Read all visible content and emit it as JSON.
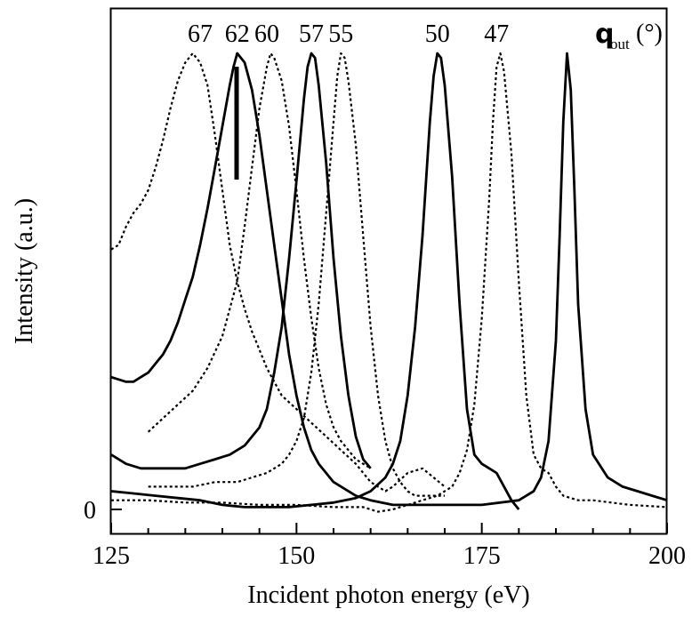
{
  "chart_data": {
    "type": "line",
    "xlabel": "Incident photon energy (eV)",
    "ylabel": "Intensity (a.u.)",
    "xlim": [
      125,
      200
    ],
    "ylim": [
      -0.05,
      1.05
    ],
    "x_ticks": [
      "125",
      "150",
      "175",
      "200"
    ],
    "y_ticks": [
      "0"
    ],
    "grid": false,
    "legend_header": {
      "symbol": "q",
      "subscript": "out",
      "unit": "(°)"
    },
    "series": [
      {
        "name": "67",
        "style": "dashed",
        "peak_label_x": 137,
        "points": [
          [
            125,
            0.57
          ],
          [
            126,
            0.58
          ],
          [
            127,
            0.62
          ],
          [
            128,
            0.65
          ],
          [
            129,
            0.67
          ],
          [
            130,
            0.7
          ],
          [
            131,
            0.75
          ],
          [
            132,
            0.81
          ],
          [
            133,
            0.88
          ],
          [
            134,
            0.94
          ],
          [
            135,
            0.98
          ],
          [
            136,
            1.0
          ],
          [
            137,
            0.98
          ],
          [
            138,
            0.93
          ],
          [
            139,
            0.82
          ],
          [
            140,
            0.7
          ],
          [
            141,
            0.58
          ],
          [
            142,
            0.5
          ],
          [
            143,
            0.44
          ],
          [
            144,
            0.39
          ],
          [
            145,
            0.35
          ],
          [
            146,
            0.31
          ],
          [
            147,
            0.28
          ],
          [
            148,
            0.25
          ],
          [
            150,
            0.22
          ],
          [
            152,
            0.19
          ],
          [
            154,
            0.16
          ],
          [
            156,
            0.13
          ],
          [
            158,
            0.1
          ],
          [
            160,
            0.06
          ],
          [
            161,
            0.05
          ],
          [
            162,
            0.04
          ],
          [
            163,
            0.05
          ],
          [
            165,
            0.08
          ],
          [
            167,
            0.09
          ],
          [
            170,
            0.05
          ]
        ]
      },
      {
        "name": "62",
        "style": "solid",
        "peak_label_x": 142,
        "points": [
          [
            125,
            0.29
          ],
          [
            127,
            0.28
          ],
          [
            128,
            0.28
          ],
          [
            129,
            0.29
          ],
          [
            130,
            0.3
          ],
          [
            131,
            0.32
          ],
          [
            132,
            0.34
          ],
          [
            133,
            0.37
          ],
          [
            134,
            0.41
          ],
          [
            135,
            0.46
          ],
          [
            136,
            0.51
          ],
          [
            137,
            0.58
          ],
          [
            138,
            0.66
          ],
          [
            139,
            0.75
          ],
          [
            140,
            0.84
          ],
          [
            141,
            0.93
          ],
          [
            141.5,
            0.97
          ],
          [
            142,
            1.0
          ],
          [
            143,
            0.98
          ],
          [
            144,
            0.92
          ],
          [
            145,
            0.82
          ],
          [
            146,
            0.7
          ],
          [
            147,
            0.58
          ],
          [
            148,
            0.46
          ],
          [
            149,
            0.34
          ],
          [
            150,
            0.25
          ],
          [
            151,
            0.18
          ],
          [
            152,
            0.13
          ],
          [
            153,
            0.1
          ],
          [
            155,
            0.06
          ],
          [
            158,
            0.03
          ],
          [
            160,
            0.02
          ],
          [
            163,
            0.01
          ],
          [
            166,
            0.01
          ],
          [
            170,
            0.01
          ],
          [
            175,
            0.01
          ],
          [
            180,
            0.02
          ],
          [
            181,
            0.03
          ],
          [
            182,
            0.04
          ],
          [
            183,
            0.07
          ],
          [
            184,
            0.15
          ],
          [
            185,
            0.37
          ],
          [
            185.5,
            0.6
          ],
          [
            186,
            0.85
          ],
          [
            186.5,
            1.0
          ],
          [
            187,
            0.92
          ],
          [
            187.5,
            0.7
          ],
          [
            188,
            0.45
          ],
          [
            189,
            0.22
          ],
          [
            190,
            0.12
          ],
          [
            192,
            0.07
          ],
          [
            194,
            0.05
          ],
          [
            196,
            0.04
          ],
          [
            198,
            0.03
          ],
          [
            200,
            0.02
          ]
        ]
      },
      {
        "name": "60",
        "style": "dashed",
        "peak_label_x": 146,
        "points": [
          [
            130,
            0.17
          ],
          [
            132,
            0.2
          ],
          [
            134,
            0.23
          ],
          [
            136,
            0.26
          ],
          [
            138,
            0.31
          ],
          [
            140,
            0.38
          ],
          [
            142,
            0.5
          ],
          [
            143,
            0.62
          ],
          [
            144,
            0.75
          ],
          [
            145,
            0.88
          ],
          [
            146,
            0.97
          ],
          [
            146.5,
            1.0
          ],
          [
            147,
            0.99
          ],
          [
            148,
            0.94
          ],
          [
            149,
            0.84
          ],
          [
            150,
            0.7
          ],
          [
            151,
            0.55
          ],
          [
            152,
            0.42
          ],
          [
            153,
            0.31
          ],
          [
            154,
            0.23
          ],
          [
            155,
            0.18
          ],
          [
            156,
            0.15
          ],
          [
            157,
            0.13
          ],
          [
            158,
            0.11
          ],
          [
            159,
            0.1
          ],
          [
            160,
            0.09
          ]
        ]
      },
      {
        "name": "57",
        "style": "solid",
        "peak_label_x": 152,
        "points": [
          [
            125,
            0.12
          ],
          [
            127,
            0.1
          ],
          [
            129,
            0.09
          ],
          [
            131,
            0.09
          ],
          [
            133,
            0.09
          ],
          [
            135,
            0.09
          ],
          [
            137,
            0.1
          ],
          [
            139,
            0.11
          ],
          [
            141,
            0.12
          ],
          [
            143,
            0.14
          ],
          [
            145,
            0.18
          ],
          [
            146,
            0.22
          ],
          [
            147,
            0.3
          ],
          [
            148,
            0.4
          ],
          [
            149,
            0.55
          ],
          [
            150,
            0.72
          ],
          [
            151,
            0.9
          ],
          [
            151.5,
            0.97
          ],
          [
            152,
            1.0
          ],
          [
            152.5,
            0.99
          ],
          [
            153,
            0.93
          ],
          [
            154,
            0.76
          ],
          [
            155,
            0.55
          ],
          [
            156,
            0.38
          ],
          [
            157,
            0.25
          ],
          [
            158,
            0.16
          ],
          [
            159,
            0.11
          ],
          [
            160,
            0.09
          ]
        ]
      },
      {
        "name": "55",
        "style": "dashed",
        "peak_label_x": 156,
        "points": [
          [
            130,
            0.05
          ],
          [
            133,
            0.05
          ],
          [
            136,
            0.05
          ],
          [
            139,
            0.06
          ],
          [
            142,
            0.06
          ],
          [
            144,
            0.07
          ],
          [
            146,
            0.08
          ],
          [
            148,
            0.1
          ],
          [
            149,
            0.12
          ],
          [
            150,
            0.15
          ],
          [
            151,
            0.2
          ],
          [
            152,
            0.3
          ],
          [
            153,
            0.45
          ],
          [
            154,
            0.65
          ],
          [
            155,
            0.85
          ],
          [
            155.5,
            0.95
          ],
          [
            156,
            1.0
          ],
          [
            156.5,
            0.99
          ],
          [
            157,
            0.94
          ],
          [
            158,
            0.8
          ],
          [
            159,
            0.6
          ],
          [
            160,
            0.4
          ],
          [
            161,
            0.25
          ],
          [
            162,
            0.15
          ],
          [
            163,
            0.09
          ],
          [
            164,
            0.06
          ],
          [
            165,
            0.04
          ],
          [
            166,
            0.03
          ],
          [
            167,
            0.03
          ],
          [
            169,
            0.03
          ],
          [
            170,
            0.03
          ]
        ]
      },
      {
        "name": "50",
        "style": "solid",
        "peak_label_x": 169,
        "points": [
          [
            125,
            0.04
          ],
          [
            128,
            0.035
          ],
          [
            131,
            0.03
          ],
          [
            134,
            0.025
          ],
          [
            137,
            0.02
          ],
          [
            140,
            0.01
          ],
          [
            143,
            0.005
          ],
          [
            146,
            0.005
          ],
          [
            149,
            0.005
          ],
          [
            152,
            0.01
          ],
          [
            155,
            0.015
          ],
          [
            158,
            0.025
          ],
          [
            160,
            0.04
          ],
          [
            162,
            0.07
          ],
          [
            163,
            0.1
          ],
          [
            164,
            0.15
          ],
          [
            165,
            0.25
          ],
          [
            166,
            0.4
          ],
          [
            167,
            0.6
          ],
          [
            168,
            0.85
          ],
          [
            168.5,
            0.95
          ],
          [
            169,
            1.0
          ],
          [
            169.5,
            0.99
          ],
          [
            170,
            0.93
          ],
          [
            171,
            0.73
          ],
          [
            172,
            0.45
          ],
          [
            173,
            0.22
          ],
          [
            174,
            0.12
          ],
          [
            175,
            0.1
          ],
          [
            176,
            0.09
          ],
          [
            177,
            0.08
          ],
          [
            178,
            0.05
          ],
          [
            179,
            0.02
          ],
          [
            180,
            0.0
          ]
        ]
      },
      {
        "name": "47",
        "style": "dashed",
        "peak_label_x": 177,
        "points": [
          [
            125,
            0.02
          ],
          [
            130,
            0.02
          ],
          [
            135,
            0.015
          ],
          [
            140,
            0.015
          ],
          [
            145,
            0.01
          ],
          [
            150,
            0.01
          ],
          [
            155,
            0.005
          ],
          [
            159,
            0.005
          ],
          [
            160,
            0.0
          ],
          [
            161,
            -0.005
          ],
          [
            163,
            0.0
          ],
          [
            165,
            0.01
          ],
          [
            167,
            0.02
          ],
          [
            169,
            0.03
          ],
          [
            171,
            0.05
          ],
          [
            172,
            0.08
          ],
          [
            173,
            0.13
          ],
          [
            174,
            0.23
          ],
          [
            175,
            0.42
          ],
          [
            176,
            0.68
          ],
          [
            176.5,
            0.85
          ],
          [
            177,
            0.97
          ],
          [
            177.5,
            1.0
          ],
          [
            178,
            0.96
          ],
          [
            179,
            0.78
          ],
          [
            180,
            0.5
          ],
          [
            181,
            0.25
          ],
          [
            182,
            0.12
          ],
          [
            183,
            0.09
          ],
          [
            184,
            0.08
          ],
          [
            185,
            0.05
          ],
          [
            186,
            0.03
          ],
          [
            188,
            0.02
          ],
          [
            190,
            0.02
          ],
          [
            195,
            0.01
          ],
          [
            200,
            0.005
          ]
        ]
      }
    ]
  }
}
